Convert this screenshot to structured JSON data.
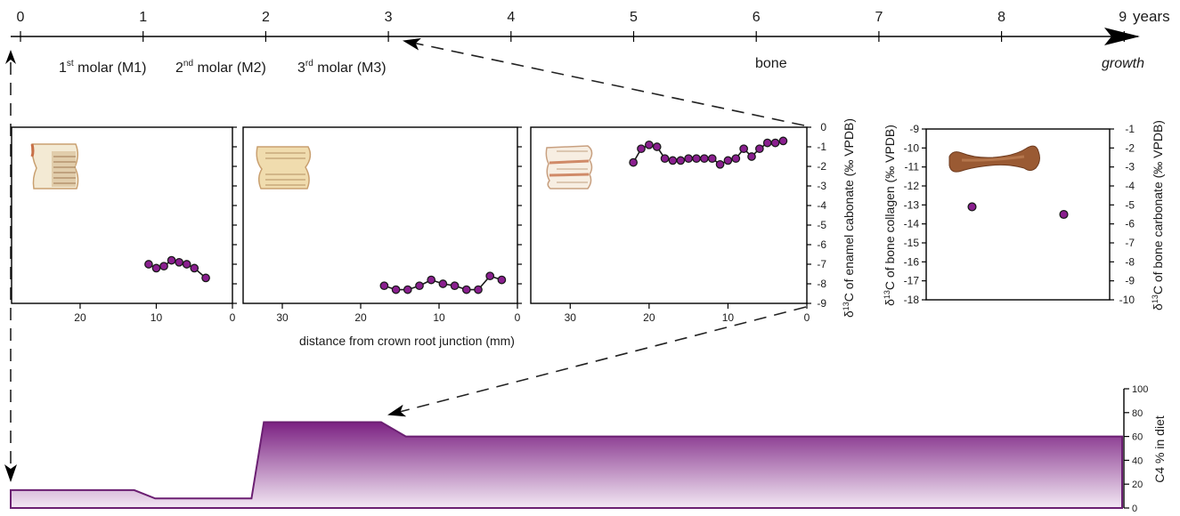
{
  "timeline": {
    "ticks": [
      "0",
      "1",
      "2",
      "3",
      "4",
      "5",
      "6",
      "7",
      "8",
      "9"
    ],
    "years_label": "years",
    "growth_label": "growth",
    "teeth_labels": [
      {
        "sup": "st",
        "pre": "1",
        "post": " molar (M1)"
      },
      {
        "sup": "nd",
        "pre": "2",
        "post": " molar (M2)"
      },
      {
        "sup": "rd",
        "pre": "3",
        "post": " molar (M3)"
      }
    ],
    "bone_label": "bone"
  },
  "xaxis_label": "distance from crown root junction (mm)",
  "colors": {
    "dot": "#8a1f8f",
    "area_top": "#7b2182",
    "area_bottom": "#f3e8f4",
    "bone": "#9a5a33"
  },
  "icons": {
    "tooth": "molar-photo",
    "bone": "bone-photo"
  },
  "chart_data": [
    {
      "type": "line",
      "name": "M1",
      "xlim": [
        29,
        0
      ],
      "xticks": [
        "20",
        "10",
        "0"
      ],
      "xtick_values": [
        20,
        10,
        0
      ],
      "ylim": [
        -9,
        0
      ],
      "x": [
        11,
        10,
        9,
        8,
        7,
        6,
        5,
        3.5
      ],
      "y": [
        -7.0,
        -7.2,
        -7.1,
        -6.8,
        -6.9,
        -7.0,
        -7.2,
        -7.7
      ]
    },
    {
      "type": "line",
      "name": "M2",
      "xlim": [
        35,
        0
      ],
      "xticks": [
        "30",
        "20",
        "10",
        "0"
      ],
      "xtick_values": [
        30,
        20,
        10,
        0
      ],
      "ylim": [
        -9,
        0
      ],
      "x": [
        17,
        15.5,
        14,
        12.5,
        11,
        9.5,
        8,
        6.5,
        5,
        3.5,
        2
      ],
      "y": [
        -8.1,
        -8.3,
        -8.3,
        -8.1,
        -7.8,
        -8.0,
        -8.1,
        -8.3,
        -8.3,
        -7.6,
        -7.8
      ]
    },
    {
      "type": "line",
      "name": "M3",
      "xlim": [
        35,
        0
      ],
      "xticks": [
        "30",
        "20",
        "10",
        "0"
      ],
      "xtick_values": [
        30,
        20,
        10,
        0
      ],
      "ylim": [
        -9,
        0
      ],
      "yticks": [
        "0",
        "-1",
        "-2",
        "-3",
        "-4",
        "-5",
        "-6",
        "-7",
        "-8",
        "-9"
      ],
      "ylabel": "δ13C of enamel cabonate (‰ VPDB)",
      "x": [
        22,
        21,
        20,
        19,
        18,
        17,
        16,
        15,
        14,
        13,
        12,
        11,
        10,
        9,
        8,
        7,
        6,
        5,
        4,
        3
      ],
      "y": [
        -1.8,
        -1.1,
        -0.9,
        -1.0,
        -1.6,
        -1.7,
        -1.7,
        -1.6,
        -1.6,
        -1.6,
        -1.6,
        -1.9,
        -1.7,
        -1.6,
        -1.1,
        -1.5,
        -1.1,
        -0.8,
        -0.8,
        -0.7
      ]
    },
    {
      "type": "scatter",
      "name": "bone",
      "ylim_left": [
        -18,
        -9
      ],
      "ylim_right": [
        -10,
        -1
      ],
      "yticks_left": [
        "-9",
        "-10",
        "-11",
        "-12",
        "-13",
        "-14",
        "-15",
        "-16",
        "-17",
        "-18"
      ],
      "yticks_right": [
        "-1",
        "-2",
        "-3",
        "-4",
        "-5",
        "-6",
        "-7",
        "-8",
        "-9",
        "-10"
      ],
      "ylabel_left": "δ13C of bone collagen (‰ VPDB)",
      "ylabel_right": "δ13C of bone carbonate (‰ VPDB)",
      "points": [
        {
          "x": 0.25,
          "y": -13.1,
          "axis": "left"
        },
        {
          "x": 0.75,
          "y": -5.5,
          "axis": "right"
        }
      ]
    },
    {
      "type": "area",
      "name": "C4 diet",
      "xlim": [
        0,
        9
      ],
      "ylim": [
        0,
        100
      ],
      "yticks": [
        "0",
        "20",
        "40",
        "60",
        "80",
        "100"
      ],
      "ylabel": "C4 % in diet",
      "x": [
        0,
        1.0,
        1.17,
        1.95,
        2.05,
        3.0,
        3.2,
        9.0
      ],
      "y": [
        15,
        15,
        8,
        8,
        72,
        72,
        60,
        60
      ]
    }
  ]
}
